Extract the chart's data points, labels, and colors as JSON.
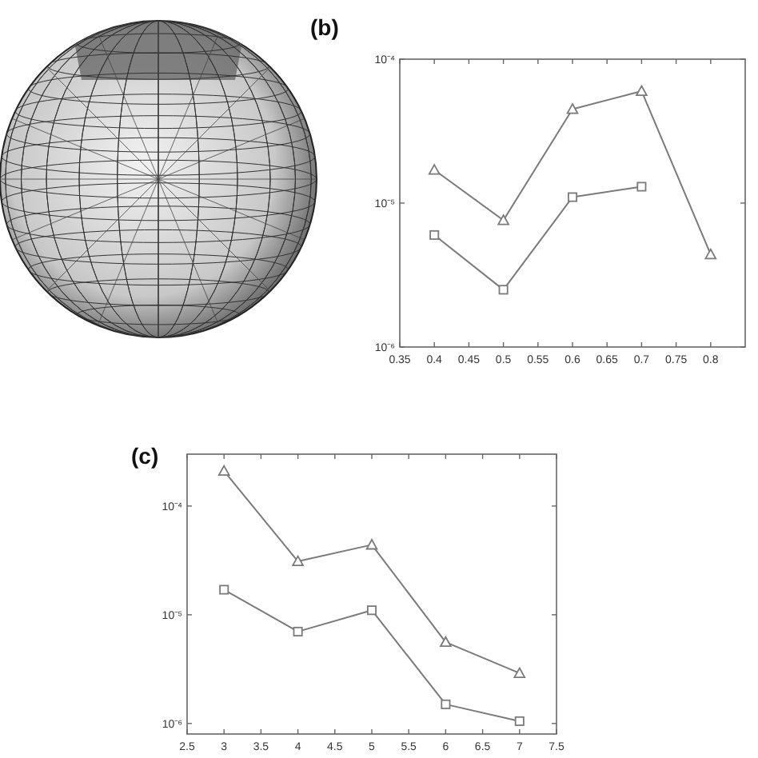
{
  "chart_data": [
    {
      "type": "line",
      "title": "(b)",
      "x": [
        0.4,
        0.5,
        0.6,
        0.7,
        0.8
      ],
      "series": [
        {
          "color": "#7a7a7a",
          "marker": "triangle",
          "values": [
            1.7e-05,
            7.6e-06,
            4.5e-05,
            6e-05,
            4.4e-06
          ]
        },
        {
          "color": "#7a7a7a",
          "marker": "square",
          "values": [
            6e-06,
            2.5e-06,
            1.1e-05,
            1.3e-05,
            null
          ]
        }
      ],
      "xlim": [
        0.35,
        0.85
      ],
      "xticks": [
        0.35,
        0.4,
        0.45,
        0.5,
        0.55,
        0.6,
        0.65,
        0.7,
        0.75,
        0.8
      ],
      "ylim": [
        1e-06,
        0.0001
      ],
      "yticks": [
        {
          "value": 1e-06,
          "label": "10⁻⁶"
        },
        {
          "value": 1e-05,
          "label": "10⁻⁵"
        },
        {
          "value": 0.0001,
          "label": "10⁻⁴"
        }
      ],
      "log": "y",
      "line_style": "solid"
    },
    {
      "type": "line",
      "title": "(c)",
      "x": [
        3,
        4,
        5,
        6,
        7
      ],
      "series": [
        {
          "color": "#7a7a7a",
          "marker": "triangle",
          "values": [
            0.00021,
            3.1e-05,
            4.4e-05,
            5.6e-06,
            2.9e-06
          ]
        },
        {
          "color": "#7a7a7a",
          "marker": "square",
          "values": [
            1.7e-05,
            7e-06,
            1.1e-05,
            1.5e-06,
            1.05e-06
          ]
        }
      ],
      "xlim": [
        2.5,
        7.5
      ],
      "xticks": [
        2.5,
        3,
        3.5,
        4,
        4.5,
        5,
        5.5,
        6,
        6.5,
        7,
        7.5
      ],
      "ylim": [
        8e-07,
        0.0003
      ],
      "yticks": [
        {
          "value": 1e-06,
          "label": "10⁻⁶"
        },
        {
          "value": 1e-05,
          "label": "10⁻⁵"
        },
        {
          "value": 0.0001,
          "label": "10⁻⁴"
        }
      ],
      "log": "y",
      "line_style": "solid"
    }
  ]
}
